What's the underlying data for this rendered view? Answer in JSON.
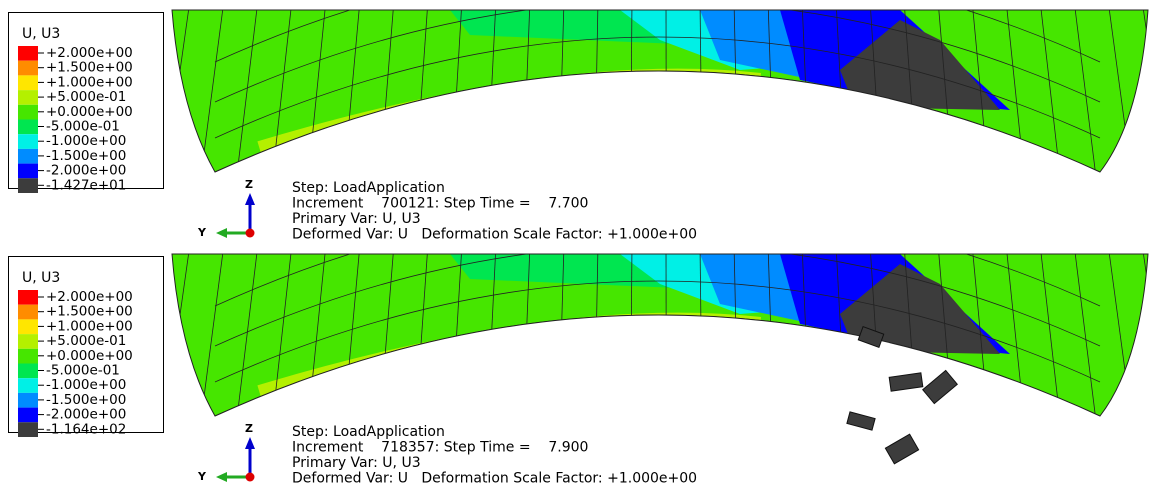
{
  "panels": [
    {
      "legend": {
        "title": "U, U3",
        "entries": [
          {
            "label": "+2.000e+00",
            "color": "#ff0000"
          },
          {
            "label": "+1.500e+00",
            "color": "#ff8c00"
          },
          {
            "label": "+1.000e+00",
            "color": "#ffe600"
          },
          {
            "label": "+5.000e-01",
            "color": "#b4f000"
          },
          {
            "label": "+0.000e+00",
            "color": "#46e600"
          },
          {
            "label": "-5.000e-01",
            "color": "#00e650"
          },
          {
            "label": "-1.000e+00",
            "color": "#00f0e6"
          },
          {
            "label": "-1.500e+00",
            "color": "#008cff"
          },
          {
            "label": "-2.000e+00",
            "color": "#0000ff"
          },
          {
            "label": "-1.427e+01",
            "color": "#3c3c3c"
          }
        ]
      },
      "status": [
        "Step: LoadApplication",
        "Increment    700121: Step Time =    7.700",
        "Primary Var: U, U3",
        "Deformed Var: U   Deformation Scale Factor: +1.000e+00"
      ],
      "triad": {
        "z": "Z",
        "y": "Y"
      }
    },
    {
      "legend": {
        "title": "U, U3",
        "entries": [
          {
            "label": "+2.000e+00",
            "color": "#ff0000"
          },
          {
            "label": "+1.500e+00",
            "color": "#ff8c00"
          },
          {
            "label": "+1.000e+00",
            "color": "#ffe600"
          },
          {
            "label": "+5.000e-01",
            "color": "#b4f000"
          },
          {
            "label": "+0.000e+00",
            "color": "#46e600"
          },
          {
            "label": "-5.000e-01",
            "color": "#00e650"
          },
          {
            "label": "-1.000e+00",
            "color": "#00f0e6"
          },
          {
            "label": "-1.500e+00",
            "color": "#008cff"
          },
          {
            "label": "-2.000e+00",
            "color": "#0000ff"
          },
          {
            "label": "-1.164e+02",
            "color": "#3c3c3c"
          }
        ]
      },
      "status": [
        "Step: LoadApplication",
        "Increment    718357: Step Time =    7.900",
        "Primary Var: U, U3",
        "Deformed Var: U   Deformation Scale Factor: +1.000e+00"
      ],
      "triad": {
        "z": "Z",
        "y": "Y"
      }
    }
  ]
}
